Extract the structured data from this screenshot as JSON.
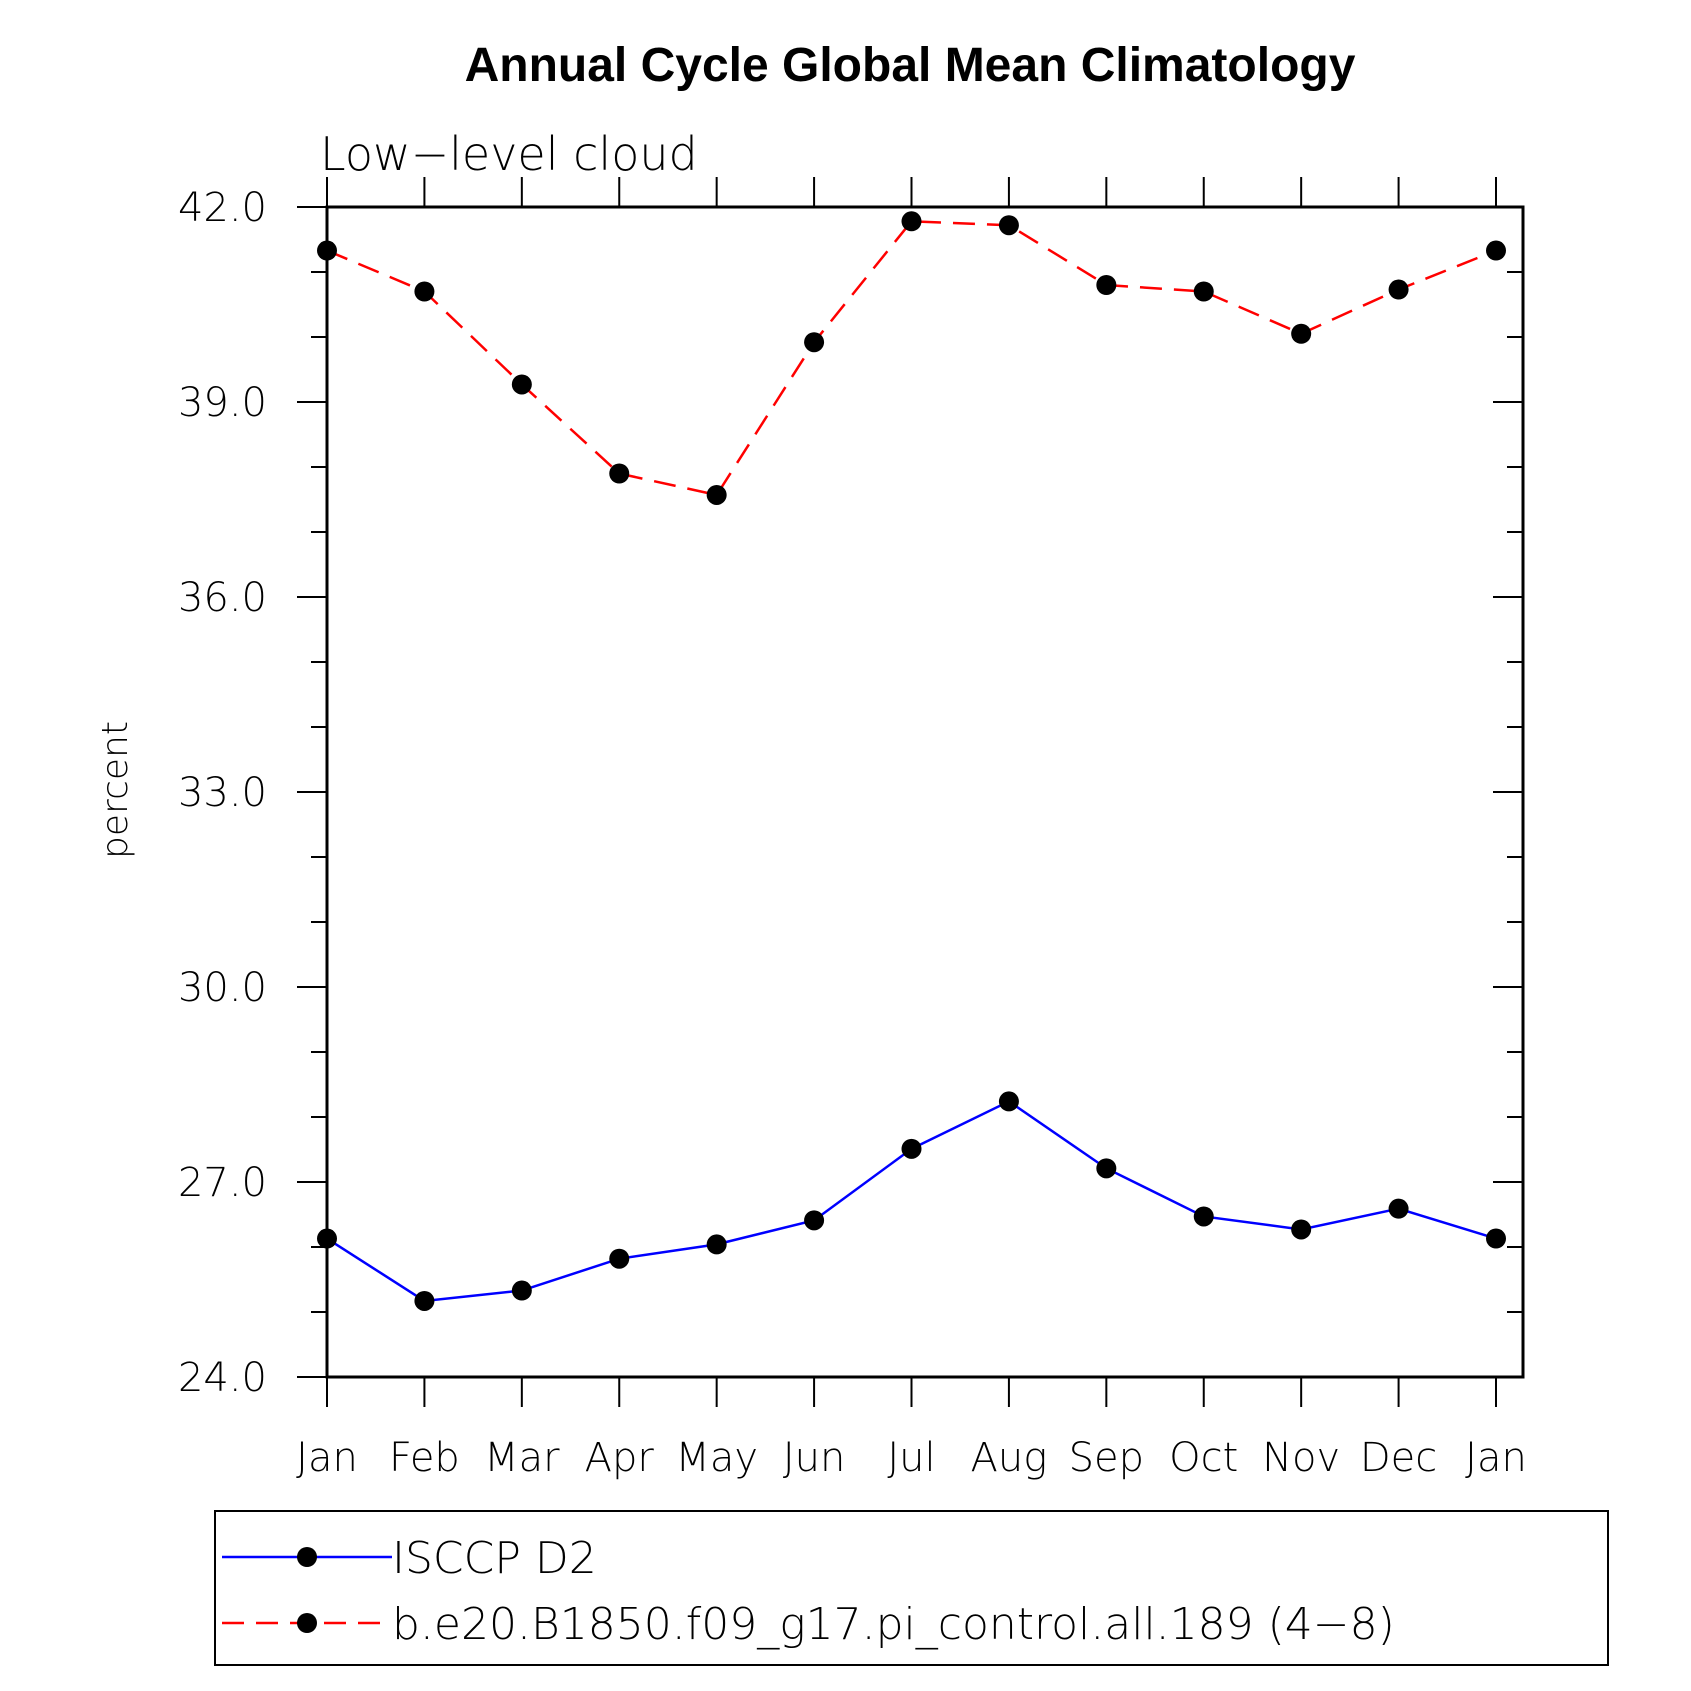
{
  "chart_data": {
    "type": "line",
    "title": "Annual Cycle Global Mean Climatology",
    "subtitle": "Low−level cloud",
    "xlabel": "",
    "ylabel": "percent",
    "ylim": [
      24.0,
      42.0
    ],
    "yticks": [
      "24.0",
      "27.0",
      "30.0",
      "33.0",
      "36.0",
      "39.0",
      "42.0"
    ],
    "categories": [
      "Jan",
      "Feb",
      "Mar",
      "Apr",
      "May",
      "Jun",
      "Jul",
      "Aug",
      "Sep",
      "Oct",
      "Nov",
      "Dec",
      "Jan"
    ],
    "grid": false,
    "legend_position": "bottom",
    "series": [
      {
        "name": "ISCCP D2",
        "color": "#0000ff",
        "dash": "solid",
        "values": [
          26.13,
          25.17,
          25.33,
          25.82,
          26.04,
          26.41,
          27.51,
          28.24,
          27.21,
          26.47,
          26.27,
          26.59,
          26.13
        ]
      },
      {
        "name": "b.e20.B1850.f09_g17.pi_control.all.189 (4−8)",
        "color": "#ff0000",
        "dash": "dashed",
        "values": [
          41.33,
          40.7,
          39.27,
          37.9,
          37.57,
          39.92,
          41.78,
          41.72,
          40.8,
          40.7,
          40.05,
          40.73,
          41.33
        ]
      }
    ]
  }
}
